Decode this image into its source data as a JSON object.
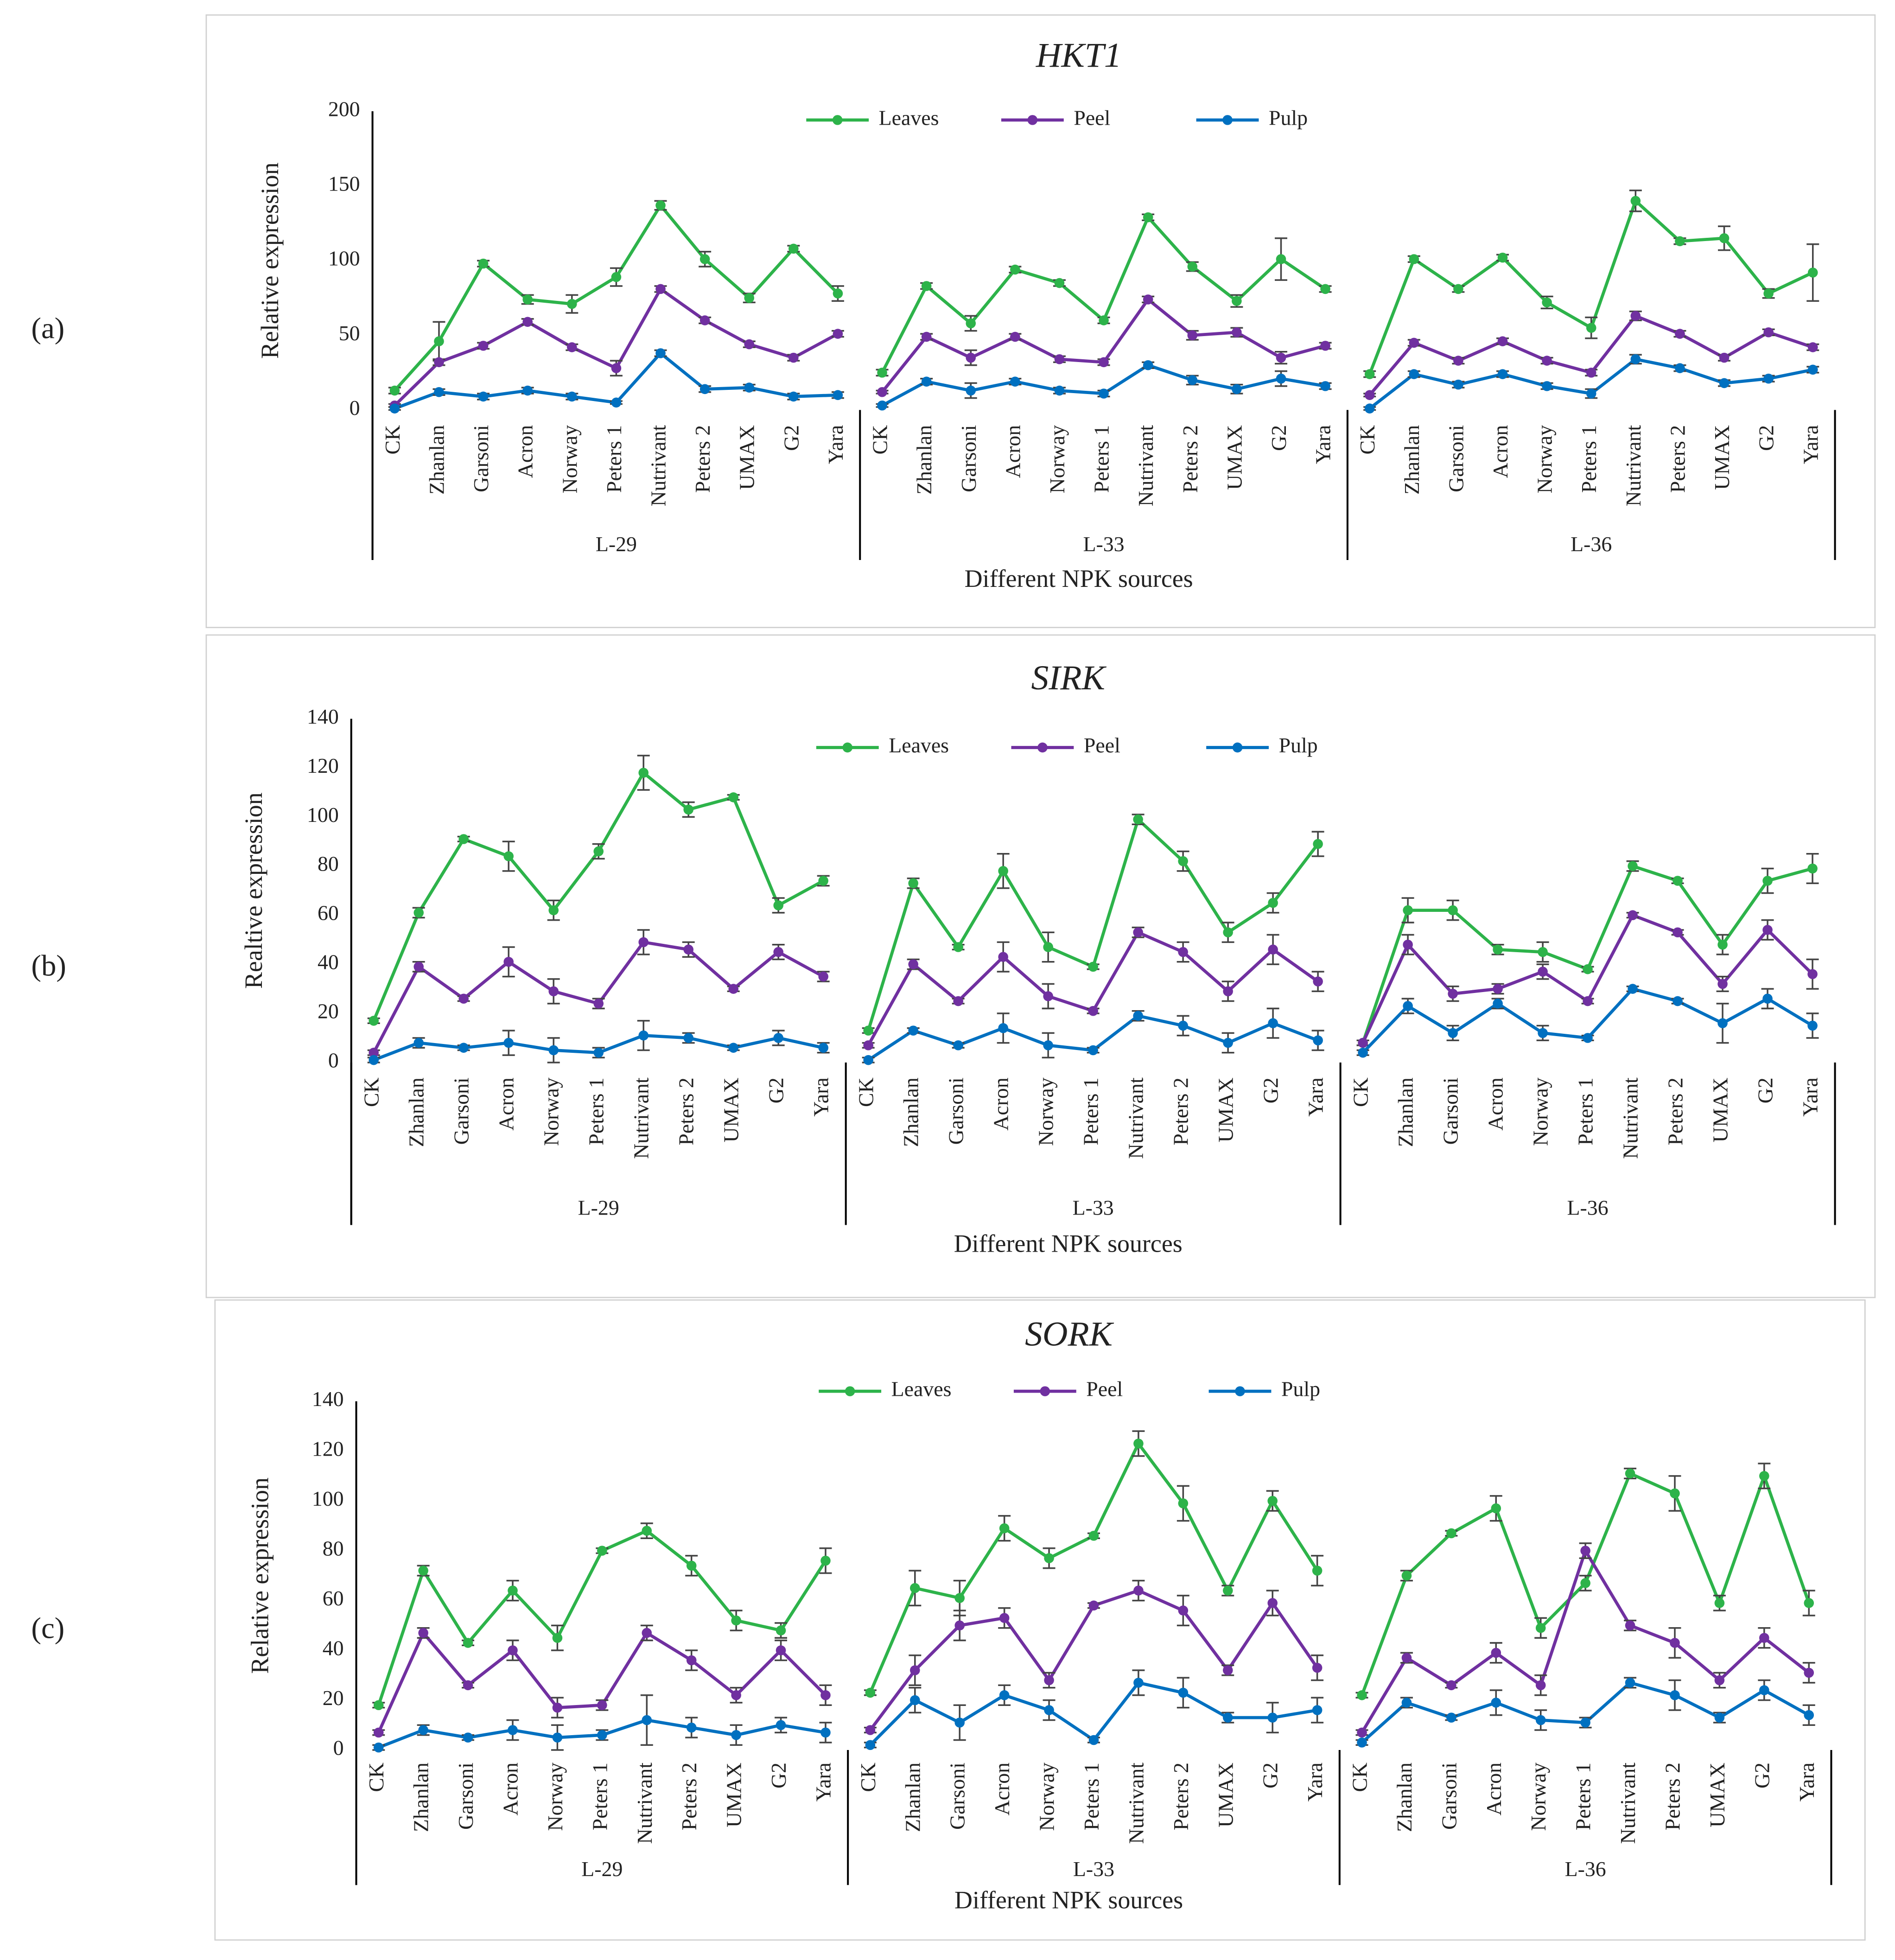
{
  "chart_data": [
    {
      "type": "line",
      "label": "(a)",
      "title": "HKT1",
      "y_label": "Relative expression",
      "x_label": "Different NPK sources",
      "categories": [
        "CK",
        "Zhanlan",
        "Garsoni",
        "Acron",
        "Norway",
        "Peters 1",
        "Nutrivant",
        "Peters 2",
        "UMAX",
        "G2",
        "Yara",
        "CK",
        "Zhanlan",
        "Garsoni",
        "Acron",
        "Norway",
        "Peters 1",
        "Nutrivant",
        "Peters 2",
        "UMAX",
        "G2",
        "Yara",
        "CK",
        "Zhanlan",
        "Garsoni",
        "Acron",
        "Norway",
        "Peters 1",
        "Nutrivant",
        "Peters 2",
        "UMAX",
        "G2",
        "Yara"
      ],
      "groups": [
        "L-29",
        "L-33",
        "L-36"
      ],
      "ylim": [
        0,
        200
      ],
      "yticks": [
        0,
        50,
        100,
        150,
        200
      ],
      "series": [
        {
          "name": "Leaves",
          "color": "#2db34a",
          "values": [
            13,
            46,
            98,
            74,
            71,
            89,
            137,
            101,
            75,
            108,
            78,
            25,
            83,
            58,
            94,
            85,
            60,
            129,
            96,
            73,
            101,
            81,
            24,
            101,
            81,
            102,
            72,
            55,
            140,
            113,
            115,
            78,
            92
          ],
          "errors": [
            2,
            13,
            2,
            3,
            6,
            6,
            3,
            5,
            3,
            2,
            5,
            2,
            2,
            5,
            2,
            2,
            2,
            2,
            3,
            4,
            14,
            2,
            2,
            2,
            2,
            2,
            4,
            7,
            7,
            2,
            8,
            3,
            19
          ]
        },
        {
          "name": "Peel",
          "color": "#7030a0",
          "values": [
            3,
            32,
            43,
            59,
            42,
            28,
            81,
            60,
            44,
            35,
            51,
            12,
            49,
            35,
            49,
            34,
            32,
            74,
            50,
            52,
            35,
            43,
            10,
            45,
            33,
            46,
            33,
            25,
            63,
            51,
            35,
            52,
            42
          ],
          "errors": [
            1,
            2,
            2,
            2,
            2,
            5,
            2,
            2,
            2,
            2,
            2,
            1,
            2,
            5,
            2,
            2,
            2,
            2,
            3,
            3,
            4,
            2,
            1,
            2,
            2,
            2,
            2,
            2,
            3,
            2,
            2,
            2,
            2
          ]
        },
        {
          "name": "Pulp",
          "color": "#0070c0",
          "values": [
            1,
            12,
            9,
            13,
            9,
            5,
            38,
            14,
            15,
            9,
            10,
            3,
            19,
            13,
            19,
            13,
            11,
            30,
            20,
            14,
            21,
            16,
            1,
            24,
            17,
            24,
            16,
            11,
            34,
            28,
            18,
            21,
            27
          ],
          "errors": [
            1,
            2,
            2,
            2,
            2,
            1,
            2,
            2,
            2,
            2,
            2,
            1,
            2,
            5,
            2,
            2,
            2,
            2,
            3,
            3,
            5,
            2,
            1,
            2,
            2,
            2,
            2,
            3,
            3,
            2,
            2,
            2,
            2
          ]
        }
      ]
    },
    {
      "type": "line",
      "label": "(b)",
      "title": "SIRK",
      "y_label": "Realtive expression",
      "x_label": "Different NPK sources",
      "categories": [
        "CK",
        "Zhanlan",
        "Garsoni",
        "Acron",
        "Norway",
        "Peters 1",
        "Nutrivant",
        "Peters 2",
        "UMAX",
        "G2",
        "Yara",
        "CK",
        "Zhanlan",
        "Garsoni",
        "Acron",
        "Norway",
        "Peters 1",
        "Nutrivant",
        "Peters 2",
        "UMAX",
        "G2",
        "Yara",
        "CK",
        "Zhanlan",
        "Garsoni",
        "Acron",
        "Norway",
        "Peters 1",
        "Nutrivant",
        "Peters 2",
        "UMAX",
        "G2",
        "Yara"
      ],
      "groups": [
        "L-29",
        "L-33",
        "L-36"
      ],
      "ylim": [
        0,
        140
      ],
      "yticks": [
        0,
        20,
        40,
        60,
        80,
        100,
        120,
        140
      ],
      "series": [
        {
          "name": "Leaves",
          "color": "#2db34a",
          "values": [
            17,
            61,
            91,
            84,
            62,
            86,
            118,
            103,
            108,
            64,
            74,
            13,
            73,
            47,
            78,
            47,
            39,
            99,
            82,
            53,
            65,
            89,
            8,
            62,
            62,
            46,
            45,
            38,
            80,
            74,
            48,
            74,
            79
          ],
          "errors": [
            1,
            2,
            1,
            6,
            4,
            3,
            7,
            3,
            1,
            3,
            2,
            1,
            2,
            1,
            7,
            6,
            1,
            2,
            4,
            4,
            4,
            5,
            1,
            5,
            4,
            2,
            4,
            1,
            2,
            1,
            4,
            5,
            6
          ]
        },
        {
          "name": "Peel",
          "color": "#7030a0",
          "values": [
            4,
            39,
            26,
            41,
            29,
            24,
            49,
            46,
            30,
            45,
            35,
            7,
            40,
            25,
            43,
            27,
            21,
            53,
            45,
            29,
            46,
            33,
            8,
            48,
            28,
            30,
            37,
            25,
            60,
            53,
            32,
            54,
            36
          ],
          "errors": [
            1,
            2,
            1,
            6,
            5,
            2,
            5,
            3,
            1,
            3,
            2,
            1,
            2,
            1,
            6,
            5,
            1,
            2,
            4,
            4,
            6,
            4,
            1,
            4,
            3,
            2,
            3,
            1,
            1,
            1,
            3,
            4,
            6
          ]
        },
        {
          "name": "Pulp",
          "color": "#0070c0",
          "values": [
            1,
            8,
            6,
            8,
            5,
            4,
            11,
            10,
            6,
            10,
            6,
            1,
            13,
            7,
            14,
            7,
            5,
            19,
            15,
            8,
            16,
            9,
            4,
            23,
            12,
            24,
            12,
            10,
            30,
            25,
            16,
            26,
            15
          ],
          "errors": [
            1,
            2,
            1,
            5,
            5,
            2,
            6,
            2,
            1,
            3,
            2,
            1,
            1,
            1,
            6,
            5,
            1,
            2,
            4,
            4,
            6,
            4,
            1,
            3,
            3,
            2,
            3,
            1,
            1,
            1,
            8,
            4,
            5
          ]
        }
      ]
    },
    {
      "type": "line",
      "label": "(c)",
      "title": "SORK",
      "y_label": "Relative expression",
      "x_label": "Different NPK sources",
      "categories": [
        "CK",
        "Zhanlan",
        "Garsoni",
        "Acron",
        "Norway",
        "Peters 1",
        "Nutrivant",
        "Peters 2",
        "UMAX",
        "G2",
        "Yara",
        "CK",
        "Zhanlan",
        "Garsoni",
        "Acron",
        "Norway",
        "Peters 1",
        "Nutrivant",
        "Peters 2",
        "UMAX",
        "G2",
        "Yara",
        "CK",
        "Zhanlan",
        "Garsoni",
        "Acron",
        "Norway",
        "Peters 1",
        "Nutrivant",
        "Peters 2",
        "UMAX",
        "G2",
        "Yara"
      ],
      "groups": [
        "L-29",
        "L-33",
        "L-36"
      ],
      "ylim": [
        0,
        140
      ],
      "yticks": [
        0,
        20,
        40,
        60,
        80,
        100,
        120,
        140
      ],
      "series": [
        {
          "name": "Leaves",
          "color": "#2db34a",
          "values": [
            18,
            72,
            43,
            64,
            45,
            80,
            88,
            74,
            52,
            48,
            76,
            23,
            65,
            61,
            89,
            77,
            86,
            123,
            99,
            64,
            100,
            72,
            22,
            70,
            87,
            97,
            49,
            67,
            111,
            103,
            59,
            110,
            59
          ],
          "errors": [
            1,
            2,
            1,
            4,
            5,
            1,
            3,
            4,
            4,
            3,
            5,
            1,
            7,
            7,
            5,
            4,
            1,
            5,
            7,
            2,
            4,
            6,
            1,
            2,
            1,
            5,
            4,
            3,
            2,
            7,
            3,
            5,
            5
          ]
        },
        {
          "name": "Peel",
          "color": "#7030a0",
          "values": [
            7,
            47,
            26,
            40,
            17,
            18,
            47,
            36,
            22,
            40,
            22,
            8,
            32,
            50,
            53,
            28,
            58,
            64,
            56,
            32,
            59,
            33,
            7,
            37,
            26,
            39,
            26,
            80,
            50,
            43,
            28,
            45,
            31
          ],
          "errors": [
            1,
            2,
            1,
            4,
            4,
            2,
            3,
            4,
            3,
            4,
            4,
            1,
            6,
            6,
            4,
            3,
            1,
            4,
            6,
            2,
            5,
            5,
            1,
            2,
            1,
            4,
            4,
            3,
            2,
            6,
            3,
            4,
            4
          ]
        },
        {
          "name": "Pulp",
          "color": "#0070c0",
          "values": [
            1,
            8,
            5,
            8,
            5,
            6,
            12,
            9,
            6,
            10,
            7,
            2,
            20,
            11,
            22,
            16,
            4,
            27,
            23,
            13,
            13,
            16,
            3,
            19,
            13,
            19,
            12,
            11,
            27,
            22,
            13,
            24,
            14
          ],
          "errors": [
            1,
            2,
            1,
            4,
            5,
            2,
            10,
            4,
            4,
            3,
            4,
            1,
            5,
            7,
            4,
            4,
            1,
            5,
            6,
            2,
            6,
            5,
            1,
            2,
            1,
            5,
            4,
            2,
            2,
            6,
            2,
            4,
            4
          ]
        }
      ]
    }
  ]
}
